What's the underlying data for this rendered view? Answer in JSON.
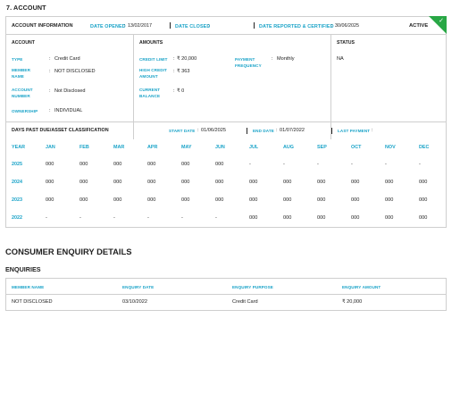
{
  "section_title": "7. ACCOUNT",
  "account_info": {
    "title": "ACCOUNT INFORMATION",
    "date_opened_label": "DATE OPENED",
    "date_opened": "13/02/2017",
    "date_closed_label": "DATE CLOSED",
    "date_closed": "",
    "date_reported_label": "DATE REPORTED & CERTIFIED",
    "date_reported": "30/06/2025",
    "status_badge": "ACTIVE"
  },
  "account": {
    "heading": "ACCOUNT",
    "type_label": "TYPE",
    "type": "Credit Card",
    "member_name_label": "MEMBER NAME",
    "member_name": "NOT DISCLOSED",
    "account_number_label": "ACCOUNT NUMBER",
    "account_number": "Not Disclosed",
    "ownership_label": "OWNERSHIP",
    "ownership": "INDIVIDUAL"
  },
  "amounts": {
    "heading": "AMOUNTS",
    "credit_limit_label": "CREDIT LIMIT",
    "credit_limit": "₹ 20,000",
    "high_credit_label": "HIGH CREDIT AMOUNT",
    "high_credit": "₹ 363",
    "current_balance_label": "CURRENT BALANCE",
    "current_balance": "₹ 0",
    "payment_frequency_label": "PAYMENT FREQUENCY",
    "payment_frequency": "Monthly"
  },
  "status": {
    "heading": "STATUS",
    "value": "NA"
  },
  "dpd": {
    "title": "DAYS PAST DUE/ASSET CLASSIFICATION",
    "start_date_label": "START DATE",
    "start_date": "01/06/2025",
    "end_date_label": "END DATE",
    "end_date": "01/07/2022",
    "last_payment_label": "LAST PAYMENT",
    "last_payment": "",
    "columns": [
      "YEAR",
      "JAN",
      "FEB",
      "MAR",
      "APR",
      "MAY",
      "JUN",
      "JUL",
      "AUG",
      "SEP",
      "OCT",
      "NOV",
      "DEC"
    ],
    "rows": [
      {
        "year": "2025",
        "cells": [
          "000",
          "000",
          "000",
          "000",
          "000",
          "000",
          "-",
          "-",
          "-",
          "-",
          "-",
          "-"
        ]
      },
      {
        "year": "2024",
        "cells": [
          "000",
          "000",
          "000",
          "000",
          "000",
          "000",
          "000",
          "000",
          "000",
          "000",
          "000",
          "000"
        ]
      },
      {
        "year": "2023",
        "cells": [
          "000",
          "000",
          "000",
          "000",
          "000",
          "000",
          "000",
          "000",
          "000",
          "000",
          "000",
          "000"
        ]
      },
      {
        "year": "2022",
        "cells": [
          "-",
          "-",
          "-",
          "-",
          "-",
          "-",
          "000",
          "000",
          "000",
          "000",
          "000",
          "000"
        ]
      }
    ]
  },
  "consumer_enquiry": {
    "title": "CONSUMER ENQUIRY DETAILS",
    "subtitle": "ENQUIRIES",
    "headers": [
      "MEMBER NAME",
      "ENQUIRY DATE",
      "ENQUIRY PURPOSE",
      "ENQUIRY AMOUNT"
    ],
    "row": [
      "NOT DISCLOSED",
      "03/10/2022",
      "Credit Card",
      "₹ 20,000"
    ]
  },
  "colors": {
    "accent": "#1aa3c8",
    "active": "#28a745",
    "border": "#cfcfcf"
  }
}
